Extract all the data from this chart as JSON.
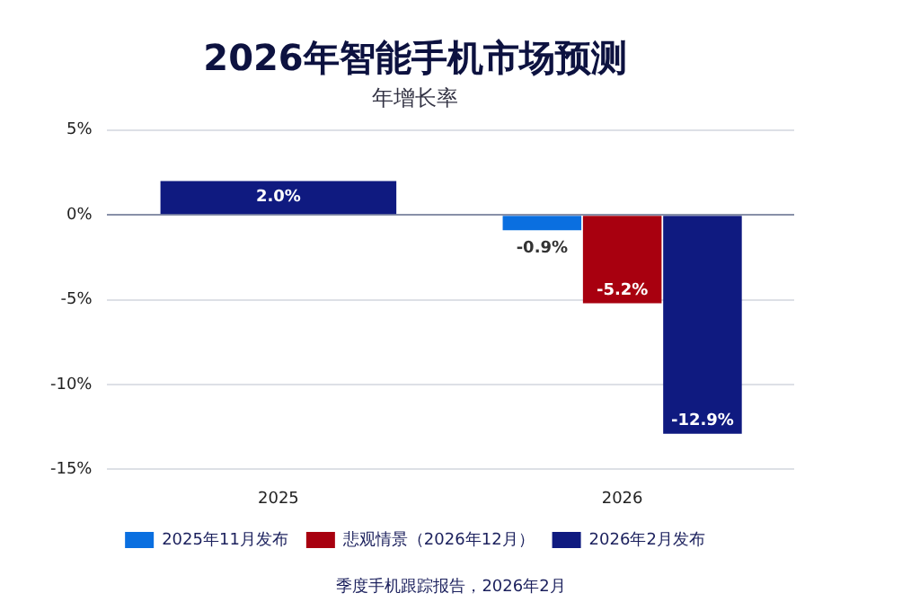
{
  "chart_data": {
    "type": "bar",
    "title": "2026年智能手机市场预测",
    "subtitle": "年增长率",
    "categories": [
      "2025",
      "2026"
    ],
    "series": [
      {
        "name": "2025年11月发布",
        "color": "#0a6fe0",
        "values": [
          null,
          -0.9
        ],
        "value_labels": [
          null,
          "-0.9%"
        ]
      },
      {
        "name": "悲观情景（2026年12月）",
        "color": "#a8000f",
        "values": [
          null,
          -5.2
        ],
        "value_labels": [
          null,
          "-5.2%"
        ]
      },
      {
        "name": "2026年2月发布",
        "color": "#0f1a80",
        "values": [
          2.0,
          -12.9
        ],
        "value_labels": [
          "2.0%",
          "-12.9%"
        ]
      }
    ],
    "ylim": [
      -15,
      5
    ],
    "yticks": [
      {
        "value": 5,
        "label": "5%"
      },
      {
        "value": 0,
        "label": "0%"
      },
      {
        "value": -5,
        "label": "-5%"
      },
      {
        "value": -10,
        "label": "-10%"
      },
      {
        "value": -15,
        "label": "-15%"
      }
    ],
    "grid": "y",
    "legend": "bottom",
    "annotations": [
      "季度手机跟踪报告，2026年2月"
    ]
  }
}
